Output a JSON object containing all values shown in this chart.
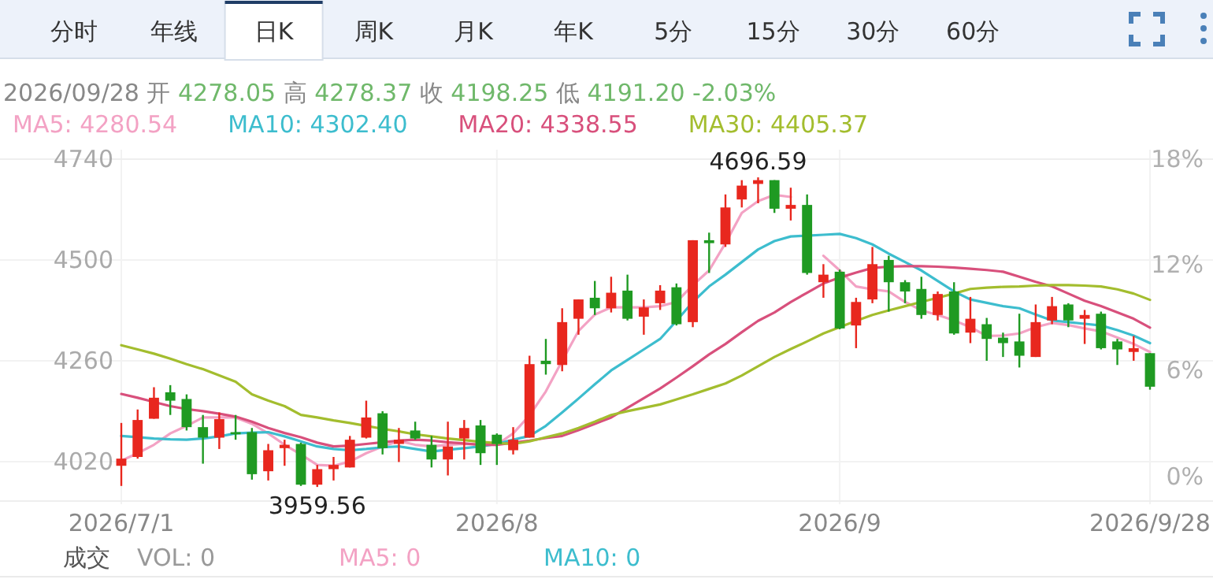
{
  "chart_data": {
    "type": "candlestick",
    "subtitle": "2026/09/28 开 4278.05 高 4278.37 收 4198.25 低 4191.20 -2.03%",
    "annotations": [
      "分时",
      "年线",
      "日K",
      "周K",
      "月K",
      "年K",
      "5分",
      "15分",
      "30分",
      "60分",
      {
        "text": "4696.59",
        "y": 4696.59
      },
      {
        "text": "3959.56",
        "y": 3959.56
      },
      "成交",
      "VOL: 0",
      "MA5: 0",
      "MA10: 0"
    ],
    "categories": [
      "2026/7/1",
      null,
      null,
      null,
      null,
      null,
      null,
      null,
      null,
      null,
      null,
      null,
      null,
      null,
      null,
      null,
      null,
      null,
      null,
      null,
      null,
      null,
      null,
      "2026/8",
      null,
      null,
      null,
      null,
      null,
      null,
      null,
      null,
      null,
      null,
      null,
      null,
      null,
      null,
      null,
      null,
      null,
      null,
      null,
      null,
      "2026/9",
      null,
      null,
      null,
      null,
      null,
      null,
      null,
      null,
      null,
      null,
      null,
      null,
      null,
      null,
      null,
      null,
      null,
      null,
      "2026/9/28"
    ],
    "ohlc": [
      [
        4010,
        4112,
        3962,
        4027
      ],
      [
        4031,
        4144,
        4027,
        4119
      ],
      [
        4122,
        4197,
        4122,
        4172
      ],
      [
        4185,
        4202,
        4131,
        4165
      ],
      [
        4169,
        4180,
        4094,
        4102
      ],
      [
        4102,
        4131,
        4015,
        4077
      ],
      [
        4077,
        4137,
        4050,
        4121
      ],
      [
        4090,
        4131,
        4072,
        4085
      ],
      [
        4090,
        4100,
        3977,
        3990
      ],
      [
        3997,
        4062,
        3975,
        4047
      ],
      [
        4052,
        4072,
        4010,
        4060
      ],
      [
        4062,
        4065,
        3962,
        3965
      ],
      [
        3965,
        4012,
        3959.56,
        4002
      ],
      [
        4002,
        4031,
        3975,
        4012
      ],
      [
        4006,
        4081,
        4006,
        4072
      ],
      [
        4077,
        4165,
        4075,
        4125
      ],
      [
        4135,
        4140,
        4037,
        4052
      ],
      [
        4062,
        4100,
        4019,
        4072
      ],
      [
        4094,
        4115,
        4072,
        4075
      ],
      [
        4060,
        4081,
        4006,
        4025
      ],
      [
        4025,
        4115,
        3987,
        4056
      ],
      [
        4075,
        4119,
        4025,
        4100
      ],
      [
        4106,
        4119,
        4012,
        4040
      ],
      [
        4084,
        4087,
        4012,
        4062
      ],
      [
        4047,
        4102,
        4037,
        4072
      ],
      [
        4077,
        4272,
        4077,
        4252
      ],
      [
        4260,
        4312,
        4227,
        4252
      ],
      [
        4250,
        4385,
        4235,
        4352
      ],
      [
        4360,
        4406,
        4322,
        4406
      ],
      [
        4410,
        4450,
        4369,
        4385
      ],
      [
        4385,
        4460,
        4375,
        4422
      ],
      [
        4427,
        4465,
        4356,
        4360
      ],
      [
        4365,
        4406,
        4322,
        4387
      ],
      [
        4397,
        4440,
        4381,
        4427
      ],
      [
        4435,
        4444,
        4344,
        4347
      ],
      [
        4352,
        4547,
        4340,
        4547
      ],
      [
        4547,
        4565,
        4469,
        4540
      ],
      [
        4537,
        4656,
        4531,
        4625
      ],
      [
        4644,
        4690,
        4625,
        4677
      ],
      [
        4681,
        4696.59,
        4635,
        4690
      ],
      [
        4690,
        4690,
        4612,
        4622
      ],
      [
        4622,
        4672,
        4594,
        4631
      ],
      [
        4631,
        4656,
        4465,
        4469
      ],
      [
        4447,
        4490,
        4410,
        4465
      ],
      [
        4472,
        4477,
        4335,
        4337
      ],
      [
        4344,
        4410,
        4290,
        4400
      ],
      [
        4406,
        4531,
        4397,
        4490
      ],
      [
        4500,
        4510,
        4377,
        4447
      ],
      [
        4447,
        4452,
        4397,
        4425
      ],
      [
        4431,
        4460,
        4360,
        4369
      ],
      [
        4369,
        4425,
        4356,
        4419
      ],
      [
        4425,
        4447,
        4322,
        4325
      ],
      [
        4327,
        4412,
        4302,
        4360
      ],
      [
        4347,
        4362,
        4260,
        4312
      ],
      [
        4315,
        4327,
        4269,
        4302
      ],
      [
        4306,
        4372,
        4244,
        4272
      ],
      [
        4269,
        4394,
        4269,
        4352
      ],
      [
        4356,
        4412,
        4347,
        4390
      ],
      [
        4394,
        4397,
        4340,
        4356
      ],
      [
        4360,
        4381,
        4300,
        4369
      ],
      [
        4372,
        4377,
        4287,
        4290
      ],
      [
        4306,
        4312,
        4250,
        4287
      ],
      [
        4281,
        4319,
        4260,
        4290
      ],
      [
        4278.05,
        4278.37,
        4191.2,
        4198.25
      ]
    ],
    "series": [
      {
        "type": "line",
        "name": "MA5: 4280.54",
        "color": "#f3a2c4",
        "values": [
          4022,
          4040,
          4060,
          4087,
          4105,
          4125,
          4125,
          4125,
          4110,
          4087,
          4060,
          4037,
          4012,
          4010,
          4020,
          4040,
          4056,
          4069,
          4060,
          4056,
          4060,
          4062,
          4061,
          4060,
          4087,
          4130,
          4187,
          4260,
          4331,
          4370,
          4387,
          4387,
          4387,
          4390,
          4400,
          4440,
          4475,
          4540,
          4612,
          4640,
          4655,
          4650,
          null,
          4510,
          4475,
          4437,
          4430,
          4425,
          4400,
          4380,
          4369,
          4356,
          4340,
          4319,
          4320,
          4325,
          4340,
          4350,
          4345,
          4337,
          4330,
          4315,
          4300,
          4281
        ]
      },
      {
        "type": "line",
        "name": "MA10: 4302.40",
        "color": "#3dbdce",
        "values": [
          4081,
          4078,
          4075,
          4073,
          4072,
          4075,
          4080,
          4087,
          4089,
          4090,
          4080,
          4068,
          4056,
          4050,
          4047,
          4050,
          4054,
          4056,
          4050,
          4044,
          4048,
          4052,
          4056,
          4062,
          4072,
          4081,
          4105,
          4137,
          4170,
          4204,
          4237,
          4262,
          4287,
          4312,
          4355,
          4400,
          4437,
          4465,
          4495,
          4525,
          4545,
          4556,
          4558,
          4560,
          4562,
          4552,
          4537,
          4515,
          4495,
          4475,
          4450,
          4425,
          4406,
          4398,
          4390,
          4385,
          4370,
          4356,
          4352,
          4348,
          4344,
          4333,
          4320,
          4302
        ]
      },
      {
        "type": "line",
        "name": "MA20: 4338.55",
        "color": "#d8507c",
        "values": [
          4181,
          4172,
          4162,
          4152,
          4145,
          4140,
          4134,
          4127,
          4115,
          4100,
          4088,
          4078,
          4065,
          4056,
          4058,
          4062,
          4066,
          4070,
          4072,
          4070,
          4066,
          4063,
          4060,
          4060,
          4065,
          4070,
          4076,
          4081,
          4095,
          4110,
          4125,
          4148,
          4171,
          4194,
          4220,
          4247,
          4275,
          4300,
          4328,
          4355,
          4375,
          4400,
          4422,
          4444,
          4458,
          4470,
          4481,
          4484,
          4485,
          4485,
          4484,
          4482,
          4479,
          4476,
          4472,
          4460,
          4448,
          4437,
          4420,
          4403,
          4390,
          4375,
          4360,
          4339
        ]
      },
      {
        "type": "line",
        "name": "MA30: 4405.37",
        "color": "#a3bd2e",
        "values": [
          4297,
          4287,
          4277,
          4265,
          4252,
          4240,
          4225,
          4210,
          4180,
          4165,
          4152,
          4131,
          4125,
          4118,
          4112,
          4105,
          4098,
          4092,
          4085,
          4080,
          4075,
          4071,
          4067,
          4064,
          4062,
          4068,
          4078,
          4087,
          4100,
          4115,
          4131,
          4140,
          4148,
          4156,
          4168,
          4180,
          4193,
          4206,
          4225,
          4247,
          4269,
          4288,
          4306,
          4325,
          4340,
          4355,
          4369,
          4380,
          4390,
          4400,
          4410,
          4420,
          4431,
          4434,
          4436,
          4437,
          4439,
          4440,
          4440,
          4439,
          4437,
          4430,
          4420,
          4405
        ]
      }
    ],
    "ylim": [
      3926,
      4740
    ],
    "yticks": [
      4020,
      4260,
      4500,
      4740
    ],
    "y2lim": [
      -1.4,
      18
    ],
    "y2ticks": [
      {
        "value": 0,
        "label": "0%"
      },
      {
        "value": 6,
        "label": "6%"
      },
      {
        "value": 12,
        "label": "12%"
      },
      {
        "value": 18,
        "label": "18%"
      }
    ],
    "grid": true,
    "legend": "top left"
  }
}
